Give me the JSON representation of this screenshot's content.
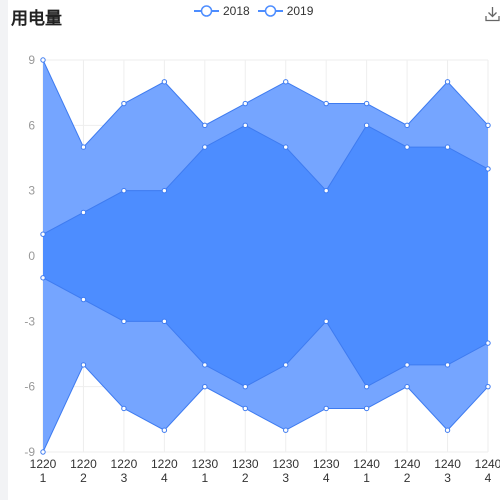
{
  "title": "用电量",
  "colors": {
    "outer_area": "#75a5ff",
    "inner_area": "#4d8dff",
    "line": "#3e7bf0",
    "point_fill": "#ffffff",
    "grid": "#eeeeee",
    "axis_text": "#999999"
  },
  "toolbar": {
    "download_icon": "download-icon"
  },
  "chart_data": {
    "type": "area",
    "title": "用电量",
    "x_label_lines": [
      [
        "1220",
        "1"
      ],
      [
        "1220",
        "2"
      ],
      [
        "1220",
        "3"
      ],
      [
        "1220",
        "4"
      ],
      [
        "1230",
        "1"
      ],
      [
        "1230",
        "2"
      ],
      [
        "1230",
        "3"
      ],
      [
        "1230",
        "4"
      ],
      [
        "1240",
        "1"
      ],
      [
        "1240",
        "2"
      ],
      [
        "1240",
        "3"
      ],
      [
        "1240",
        "4"
      ]
    ],
    "categories": [
      "1220 1",
      "1220 2",
      "1220 3",
      "1220 4",
      "1230 1",
      "1230 2",
      "1230 3",
      "1230 4",
      "1240 1",
      "1240 2",
      "1240 3",
      "1240 4"
    ],
    "series": [
      {
        "name": "2018",
        "values": [
          9,
          5,
          7,
          8,
          6,
          7,
          8,
          7,
          7,
          6,
          8,
          6
        ]
      },
      {
        "name": "2019",
        "values": [
          1,
          2,
          3,
          3,
          5,
          6,
          5,
          3,
          6,
          5,
          5,
          4
        ]
      }
    ],
    "mirrored": true,
    "ylim": [
      -9,
      9
    ],
    "yticks": [
      -9,
      -6,
      -3,
      0,
      3,
      6,
      9
    ],
    "grid": true,
    "legend_position": "top-center"
  }
}
